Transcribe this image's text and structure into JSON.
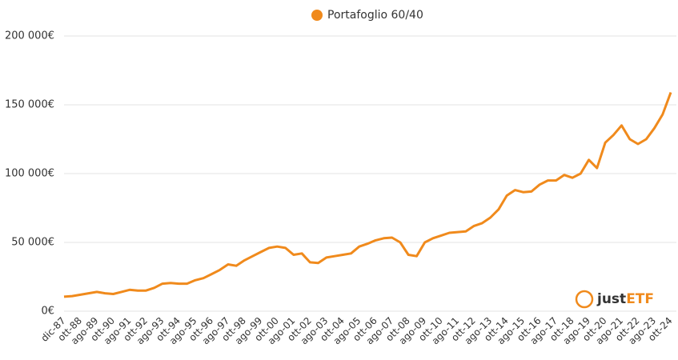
{
  "chart_data": {
    "type": "line",
    "categories": [
      "dic-87",
      null,
      "ott-88",
      null,
      "ago-89",
      null,
      "ott-90",
      null,
      "ago-91",
      null,
      "ott-92",
      null,
      "ago-93",
      null,
      "ott-94",
      null,
      "ago-95",
      null,
      "ott-96",
      null,
      "ago-97",
      null,
      "ott-98",
      null,
      "ago-99",
      null,
      "ott-00",
      null,
      "ago-01",
      null,
      "ott-02",
      null,
      "ago-03",
      null,
      "ott-04",
      null,
      "ago-05",
      null,
      "ott-06",
      null,
      "ago-07",
      null,
      "ott-08",
      null,
      "ago-09",
      null,
      "ott-10",
      null,
      "ago-11",
      null,
      "ott-12",
      null,
      "ago-13",
      null,
      "ott-14",
      null,
      "ago-15",
      null,
      "ott-16",
      null,
      "ago-17",
      null,
      "ott-18",
      null,
      "ago-19",
      null,
      "ott-20",
      null,
      "ago-21",
      null,
      "ott-22",
      null,
      "ago-23",
      null,
      "ott-24"
    ],
    "series": [
      {
        "name": "Portafoglio 60/40",
        "color": "#f08a1c",
        "values": [
          10500,
          11000,
          12000,
          13000,
          14000,
          13000,
          12500,
          14000,
          15500,
          15000,
          15000,
          17000,
          20000,
          20500,
          20000,
          20000,
          22500,
          24000,
          27000,
          30000,
          34000,
          33000,
          37000,
          40000,
          43000,
          46000,
          47000,
          46000,
          41000,
          42000,
          35500,
          35000,
          39000,
          40000,
          41000,
          42000,
          47000,
          49000,
          51500,
          53000,
          53500,
          50000,
          41000,
          40000,
          50000,
          53000,
          55000,
          57000,
          57500,
          58000,
          62000,
          64000,
          68000,
          74000,
          84000,
          88000,
          86500,
          87000,
          92000,
          95000,
          95000,
          99000,
          97000,
          100000,
          110000,
          104000,
          122500,
          128000,
          135000,
          125000,
          121500,
          125000,
          133000,
          143000,
          159000
        ]
      }
    ],
    "ylim": [
      0,
      200000
    ],
    "yticks": [
      {
        "value": 0,
        "label": "0€"
      },
      {
        "value": 50000,
        "label": "50 000€"
      },
      {
        "value": 100000,
        "label": "100 000€"
      },
      {
        "value": 150000,
        "label": "150 000€"
      },
      {
        "value": 200000,
        "label": "200 000€"
      }
    ],
    "grid": true,
    "legend": "top"
  },
  "logo": {
    "part1": "just",
    "part2": "ETF"
  }
}
